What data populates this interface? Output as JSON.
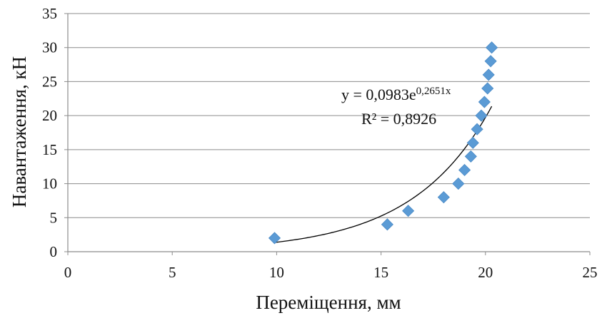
{
  "chart_data": {
    "type": "scatter",
    "xlabel": "Переміщення, мм",
    "ylabel": "Навантаження, кН",
    "xlim": [
      0,
      25
    ],
    "ylim": [
      0,
      35
    ],
    "xticks": [
      0,
      5,
      10,
      15,
      20,
      25
    ],
    "yticks": [
      0,
      5,
      10,
      15,
      20,
      25,
      30,
      35
    ],
    "grid": "horizontal",
    "marker": "diamond",
    "colors": {
      "marker": "#5b9bd5",
      "trendline": "#000000",
      "grid": "#8c8c8c"
    },
    "series": [
      {
        "points": [
          [
            9.9,
            2
          ],
          [
            15.3,
            4
          ],
          [
            16.3,
            6
          ],
          [
            18.0,
            8
          ],
          [
            18.7,
            10
          ],
          [
            19.0,
            12
          ],
          [
            19.3,
            14
          ],
          [
            19.4,
            16
          ],
          [
            19.6,
            18
          ],
          [
            19.8,
            20
          ],
          [
            19.95,
            22
          ],
          [
            20.1,
            24
          ],
          [
            20.15,
            26
          ],
          [
            20.25,
            28
          ],
          [
            20.3,
            30
          ]
        ]
      }
    ],
    "trendline": {
      "type": "exponential",
      "a": 0.0983,
      "b": 0.2651,
      "x_range": [
        9.9,
        20.3
      ],
      "equation_prefix": "y = 0,0983e",
      "equation_exponent": "0,2651x",
      "r_squared": "R² = 0,8926"
    }
  }
}
